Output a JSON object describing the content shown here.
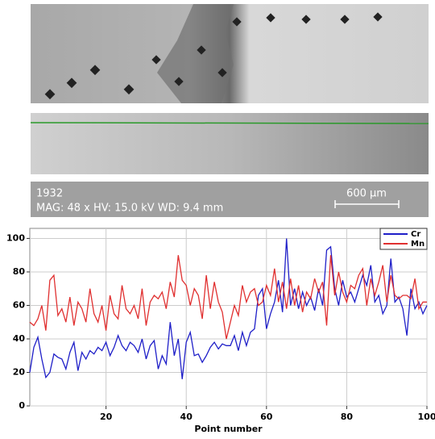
{
  "image_info": {
    "id": "1932",
    "params": "MAG: 48 x HV: 15.0 kV WD: 9.4 mm",
    "scale_bar": "600 µm"
  },
  "chart_data": {
    "type": "line",
    "x_label": "Point number",
    "x": [
      1,
      2,
      3,
      4,
      5,
      6,
      7,
      8,
      9,
      10,
      11,
      12,
      13,
      14,
      15,
      16,
      17,
      18,
      19,
      20,
      21,
      22,
      23,
      24,
      25,
      26,
      27,
      28,
      29,
      30,
      31,
      32,
      33,
      34,
      35,
      36,
      37,
      38,
      39,
      40,
      41,
      42,
      43,
      44,
      45,
      46,
      47,
      48,
      49,
      50,
      51,
      52,
      53,
      54,
      55,
      56,
      57,
      58,
      59,
      60,
      61,
      62,
      63,
      64,
      65,
      66,
      67,
      68,
      69,
      70,
      71,
      72,
      73,
      74,
      75,
      76,
      77,
      78,
      79,
      80,
      81,
      82,
      83,
      84,
      85,
      86,
      87,
      88,
      89,
      90,
      91,
      92,
      93,
      94,
      95,
      96,
      97,
      98,
      99,
      100
    ],
    "series": [
      {
        "name": "Cr",
        "color": "#1f1fc8",
        "values": [
          20,
          35,
          41,
          28,
          17,
          20,
          31,
          29,
          28,
          22,
          32,
          38,
          21,
          32,
          28,
          33,
          31,
          35,
          33,
          38,
          30,
          35,
          42,
          36,
          33,
          38,
          36,
          32,
          40,
          28,
          36,
          39,
          22,
          30,
          25,
          50,
          30,
          40,
          16,
          38,
          44,
          30,
          31,
          26,
          30,
          35,
          38,
          34,
          37,
          36,
          36,
          42,
          33,
          44,
          36,
          44,
          46,
          66,
          70,
          46,
          55,
          62,
          75,
          56,
          100,
          60,
          70,
          58,
          68,
          60,
          65,
          57,
          70,
          60,
          93,
          95,
          70,
          60,
          75,
          65,
          68,
          62,
          70,
          78,
          72,
          84,
          62,
          66,
          55,
          60,
          88,
          62,
          65,
          58,
          42,
          70,
          58,
          62,
          55,
          60
        ]
      },
      {
        "name": "Mn",
        "color": "#e03030",
        "values": [
          50,
          48,
          52,
          60,
          45,
          75,
          78,
          54,
          58,
          50,
          65,
          48,
          62,
          58,
          50,
          70,
          55,
          50,
          60,
          45,
          66,
          55,
          52,
          72,
          58,
          55,
          60,
          52,
          70,
          48,
          62,
          66,
          64,
          68,
          58,
          74,
          65,
          90,
          75,
          72,
          60,
          70,
          66,
          52,
          78,
          58,
          74,
          62,
          56,
          40,
          50,
          60,
          54,
          72,
          62,
          68,
          70,
          60,
          62,
          72,
          66,
          82,
          62,
          74,
          58,
          76,
          60,
          72,
          56,
          68,
          64,
          76,
          68,
          74,
          48,
          90,
          66,
          80,
          68,
          62,
          72,
          70,
          78,
          82,
          60,
          76,
          66,
          74,
          84,
          62,
          78,
          66,
          64,
          66,
          66,
          64,
          76,
          58,
          62,
          62
        ]
      }
    ],
    "xlim": [
      1,
      100
    ],
    "xticks": [
      20,
      40,
      60,
      80,
      100
    ],
    "ylim": [
      0,
      106
    ],
    "yticks": [
      0,
      20,
      40,
      60,
      80,
      100
    ],
    "grid": true,
    "legend": "top-right"
  }
}
